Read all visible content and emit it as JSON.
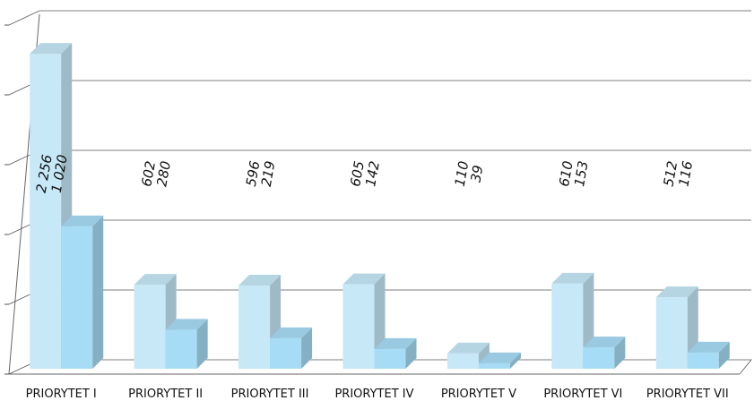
{
  "chart_data": {
    "type": "bar3d",
    "categories": [
      "PRIORYTET I",
      "PRIORYTET II",
      "PRIORYTET III",
      "PRIORYTET IV",
      "PRIORYTET V",
      "PRIORYTET VI",
      "PRIORYTET VII"
    ],
    "series": [
      {
        "color": "#c6e8f7",
        "values": [
          2256,
          602,
          596,
          605,
          110,
          610,
          512
        ],
        "value_labels": [
          "2 256",
          "602",
          "596",
          "605",
          "110",
          "610",
          "512"
        ]
      },
      {
        "color": "#a6dcf5",
        "values": [
          1020,
          280,
          219,
          142,
          39,
          153,
          116
        ],
        "value_labels": [
          "1 020",
          "280",
          "219",
          "142",
          "39",
          "153",
          "116"
        ]
      }
    ],
    "ylim": [
      0,
      2500
    ],
    "yticks": [
      0,
      500,
      1000,
      1500,
      2000,
      2500
    ],
    "grid": true
  }
}
